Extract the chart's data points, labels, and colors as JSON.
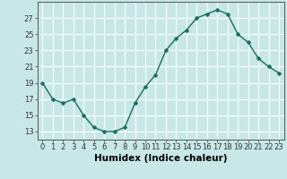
{
  "x": [
    0,
    1,
    2,
    3,
    4,
    5,
    6,
    7,
    8,
    9,
    10,
    11,
    12,
    13,
    14,
    15,
    16,
    17,
    18,
    19,
    20,
    21,
    22,
    23
  ],
  "y": [
    19,
    17,
    16.5,
    17,
    15,
    13.5,
    13,
    13,
    13.5,
    16.5,
    18.5,
    20,
    23,
    24.5,
    25.5,
    27,
    27.5,
    28,
    27.5,
    25,
    24,
    22,
    21,
    20.2
  ],
  "xlabel": "Humidex (Indice chaleur)",
  "xlim": [
    -0.5,
    23.5
  ],
  "ylim": [
    12,
    29
  ],
  "yticks": [
    13,
    15,
    17,
    19,
    21,
    23,
    25,
    27
  ],
  "xticks": [
    0,
    1,
    2,
    3,
    4,
    5,
    6,
    7,
    8,
    9,
    10,
    11,
    12,
    13,
    14,
    15,
    16,
    17,
    18,
    19,
    20,
    21,
    22,
    23
  ],
  "line_color": "#1a6b5e",
  "marker_color": "#1a6b5e",
  "bg_color": "#c8e8e8",
  "grid_color": "#ffffff",
  "axis_color": "#555555",
  "tick_label_fontsize": 6.0,
  "xlabel_fontsize": 7.5,
  "marker_size": 2.5,
  "line_width": 1.0
}
